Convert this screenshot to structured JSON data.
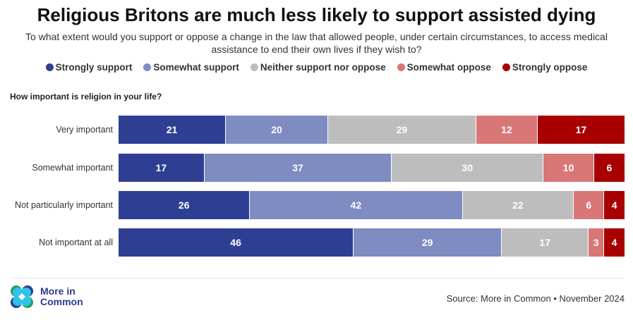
{
  "chart_data": {
    "type": "bar",
    "orientation": "horizontal",
    "stacked": true,
    "title": "Religious Britons are much less likely to support assisted dying",
    "subtitle": "To what extent would you support or oppose a change in the law that allowed people, under certain circumstances, to access medical assistance to end their own lives if they wish to?",
    "question": "How important is religion in your life?",
    "categories": [
      "Very important",
      "Somewhat important",
      "Not particularly important",
      "Not important at all"
    ],
    "series": [
      {
        "name": "Strongly support",
        "color": "#2e3f93",
        "values": [
          21,
          17,
          26,
          46
        ]
      },
      {
        "name": "Somewhat support",
        "color": "#7e8cc2",
        "values": [
          20,
          37,
          42,
          29
        ]
      },
      {
        "name": "Neither support nor oppose",
        "color": "#bdbdbd",
        "values": [
          29,
          30,
          22,
          17
        ]
      },
      {
        "name": "Somewhat oppose",
        "color": "#d97777",
        "values": [
          12,
          10,
          6,
          3
        ]
      },
      {
        "name": "Strongly oppose",
        "color": "#a80000",
        "values": [
          17,
          6,
          4,
          4
        ]
      }
    ],
    "legend_position": "top",
    "grid": false
  },
  "footer": {
    "logo_text_1": "More in",
    "logo_text_2": "Common",
    "source": "Source: More in Common • November 2024"
  }
}
